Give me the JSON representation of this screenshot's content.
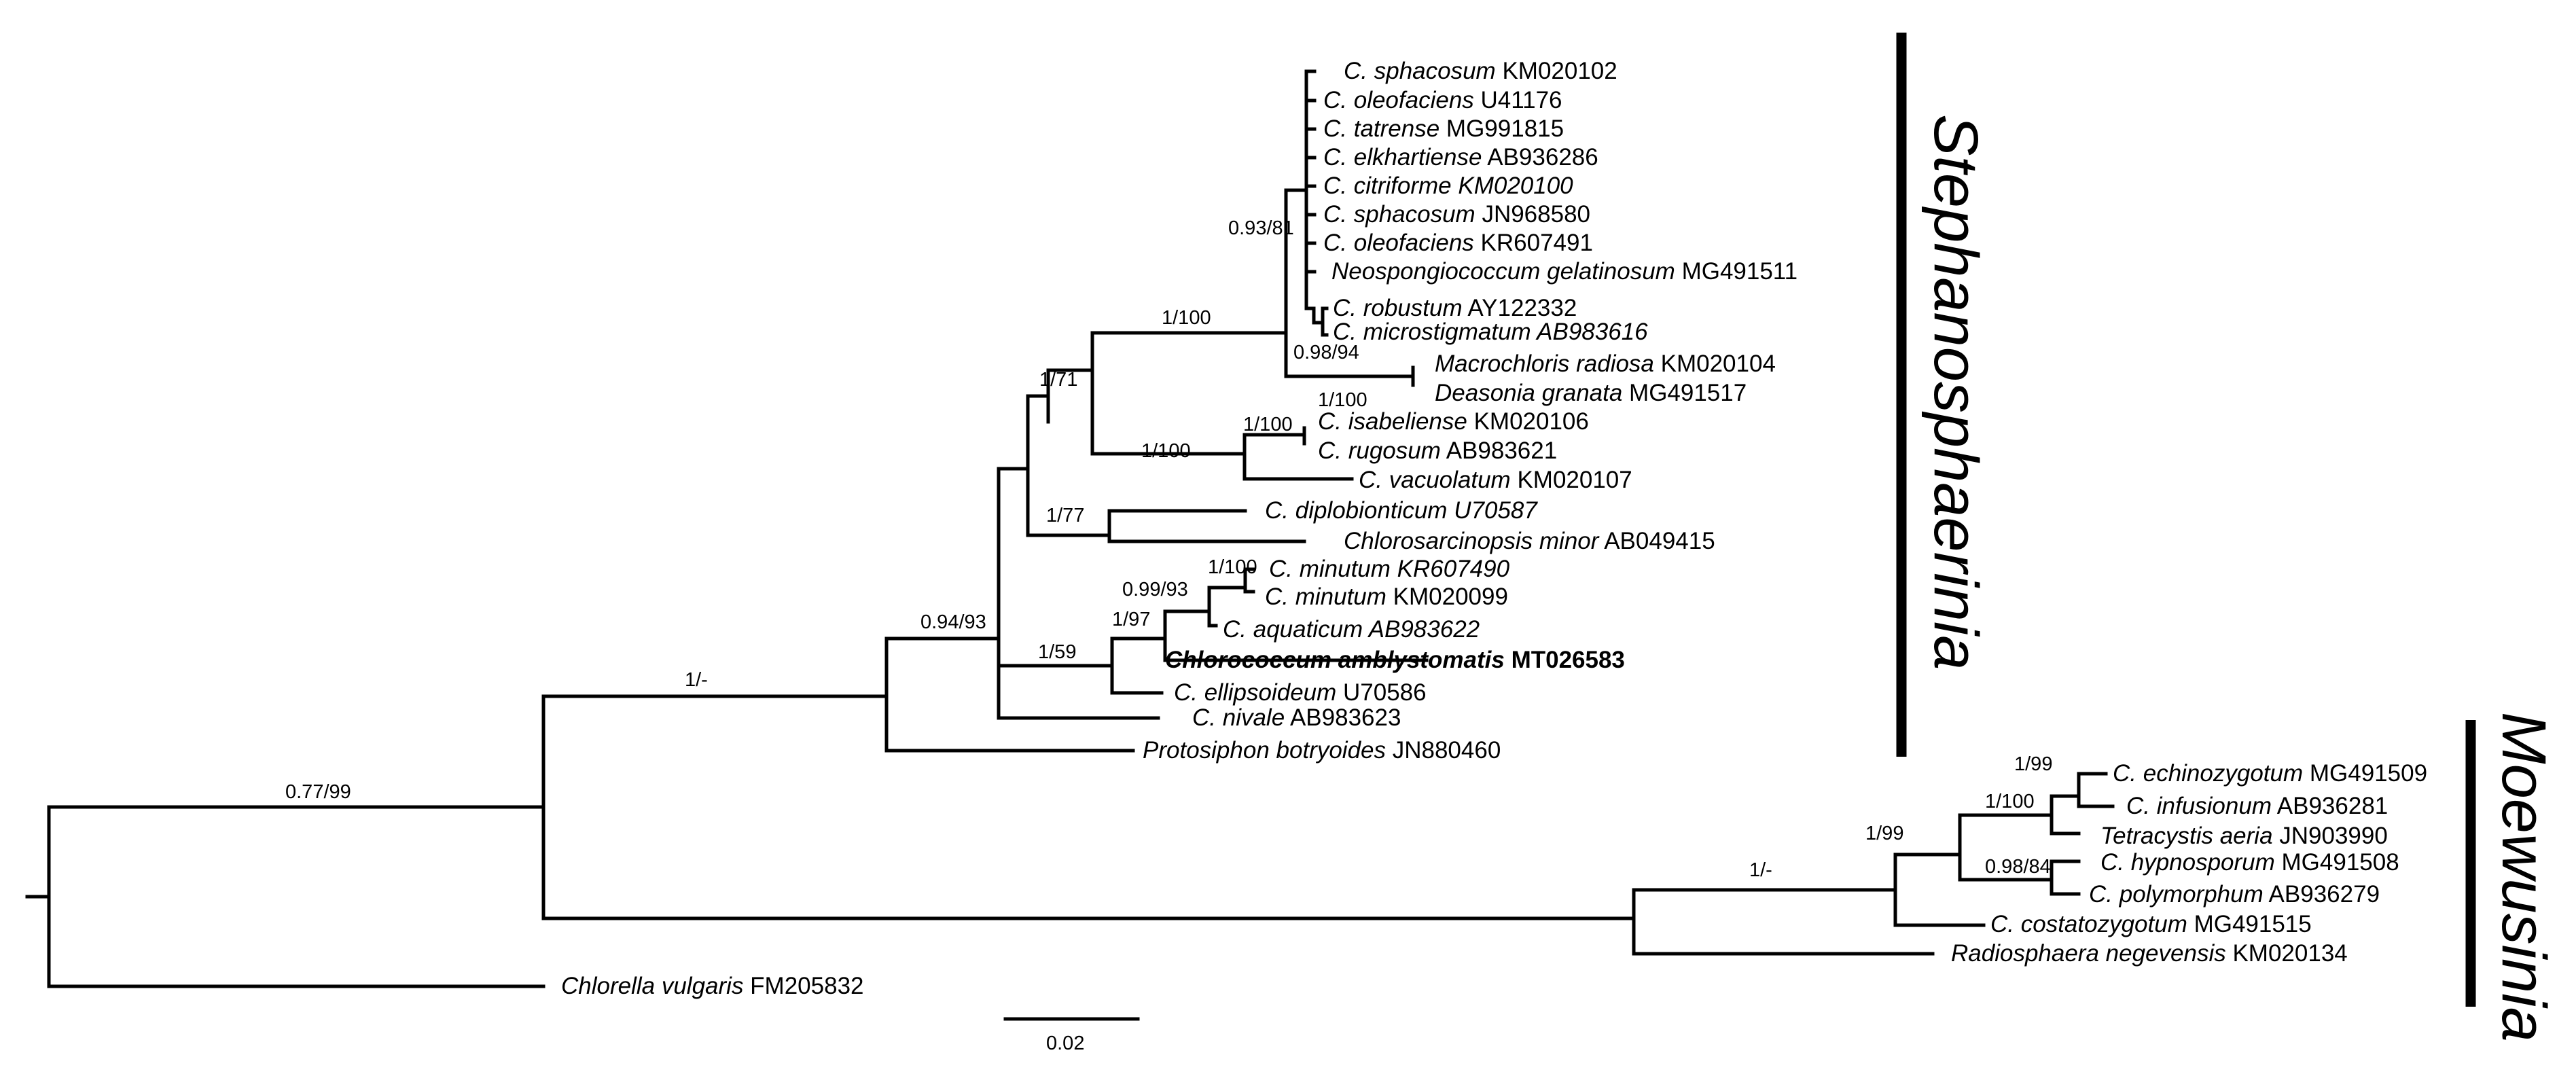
{
  "figure": {
    "title": "",
    "description_type": "phylogenetic tree"
  },
  "taxa": [
    {
      "genus": "C.",
      "species": "sphacosum",
      "acc": "KM020102",
      "acc_italic": false,
      "bold": false
    },
    {
      "genus": "C.",
      "species": "oleofaciens",
      "acc": "U41176",
      "acc_italic": false,
      "bold": false
    },
    {
      "genus": "C.",
      "species": "tatrense",
      "acc": "MG991815",
      "acc_italic": false,
      "bold": false
    },
    {
      "genus": "C.",
      "species": "elkhartiense",
      "acc": "AB936286",
      "acc_italic": false,
      "bold": false
    },
    {
      "genus": "C.",
      "species": "citriforme",
      "acc": "KM020100",
      "acc_italic": true,
      "bold": false
    },
    {
      "genus": "C.",
      "species": "sphacosum",
      "acc": "JN968580",
      "acc_italic": false,
      "bold": false
    },
    {
      "genus": "C.",
      "species": "oleofaciens",
      "acc": "KR607491",
      "acc_italic": false,
      "bold": false
    },
    {
      "genus": "Neospongiococcum",
      "species": "gelatinosum",
      "acc": "MG491511",
      "acc_italic": false,
      "bold": false
    },
    {
      "genus": "C.",
      "species": "robustum",
      "acc": "AY122332",
      "acc_italic": false,
      "bold": false
    },
    {
      "genus": "C.",
      "species": "microstigmatum",
      "acc": "AB983616",
      "acc_italic": true,
      "bold": false
    },
    {
      "genus": "Macrochloris",
      "species": "radiosa",
      "acc": "KM020104",
      "acc_italic": false,
      "bold": false
    },
    {
      "genus": "Deasonia",
      "species": "granata",
      "acc": "MG491517",
      "acc_italic": false,
      "bold": false
    },
    {
      "genus": "C.",
      "species": "isabeliense",
      "acc": "KM020106",
      "acc_italic": false,
      "bold": false
    },
    {
      "genus": "C.",
      "species": "rugosum",
      "acc": "AB983621",
      "acc_italic": false,
      "bold": false
    },
    {
      "genus": "C.",
      "species": "vacuolatum",
      "acc": "KM020107",
      "acc_italic": false,
      "bold": false
    },
    {
      "genus": "C.",
      "species": "diplobionticum",
      "acc": "U70587",
      "acc_italic": true,
      "bold": false
    },
    {
      "genus": "Chlorosarcinopsis",
      "species": "minor",
      "acc": "AB049415",
      "acc_italic": false,
      "bold": false
    },
    {
      "genus": "C.",
      "species": "minutum",
      "acc": "KR607490",
      "acc_italic": true,
      "bold": false
    },
    {
      "genus": "C.",
      "species": "minutum",
      "acc": "KM020099",
      "acc_italic": false,
      "bold": false
    },
    {
      "genus": "C.",
      "species": "aquaticum",
      "acc": "AB983622",
      "acc_italic": true,
      "bold": false
    },
    {
      "genus": "Chlorococcum",
      "species": "amblystomatis",
      "acc": "MT026583",
      "acc_italic": false,
      "bold": true
    },
    {
      "genus": "C.",
      "species": "ellipsoideum",
      "acc": "U70586",
      "acc_italic": false,
      "bold": false
    },
    {
      "genus": "C.",
      "species": "nivale",
      "acc": "AB983623",
      "acc_italic": false,
      "bold": false
    },
    {
      "genus": "Protosiphon",
      "species": "botryoides",
      "acc": "JN880460",
      "acc_italic": false,
      "bold": false
    },
    {
      "genus": "C.",
      "species": "echinozygotum",
      "acc": "MG491509",
      "acc_italic": false,
      "bold": false
    },
    {
      "genus": "C.",
      "species": "infusionum",
      "acc": "AB936281",
      "acc_italic": false,
      "bold": false
    },
    {
      "genus": "Tetracystis",
      "species": "aeria",
      "acc": "JN903990",
      "acc_italic": false,
      "bold": false
    },
    {
      "genus": "C.",
      "species": "hypnosporum",
      "acc": "MG491508",
      "acc_italic": false,
      "bold": false
    },
    {
      "genus": "C.",
      "species": "polymorphum",
      "acc": "AB936279",
      "acc_italic": false,
      "bold": false
    },
    {
      "genus": "C.",
      "species": "costatozygotum",
      "acc": "MG491515",
      "acc_italic": false,
      "bold": false
    },
    {
      "genus": "Radiosphaera",
      "species": "negevensis",
      "acc": "KM020134",
      "acc_italic": false,
      "bold": false
    },
    {
      "genus": "Chlorella",
      "species": "vulgaris",
      "acc": "FM205832",
      "acc_italic": false,
      "bold": false
    }
  ],
  "support_values": [
    "0.93/81",
    "0.98/94",
    "1/100",
    "1/100",
    "1/100",
    "1/71",
    "1/77",
    "1/100",
    "0.99/93",
    "1/100",
    "1/97",
    "1/59",
    "0.94/93",
    "1/-",
    "0.77/99",
    "1/99",
    "1/100",
    "0.98/84",
    "1/99",
    "1/-"
  ],
  "clades": {
    "upper": "Stephanosphaerinia",
    "lower": "Moewusinia"
  },
  "scale_bar": {
    "label": "0.02",
    "value": 0.02
  }
}
